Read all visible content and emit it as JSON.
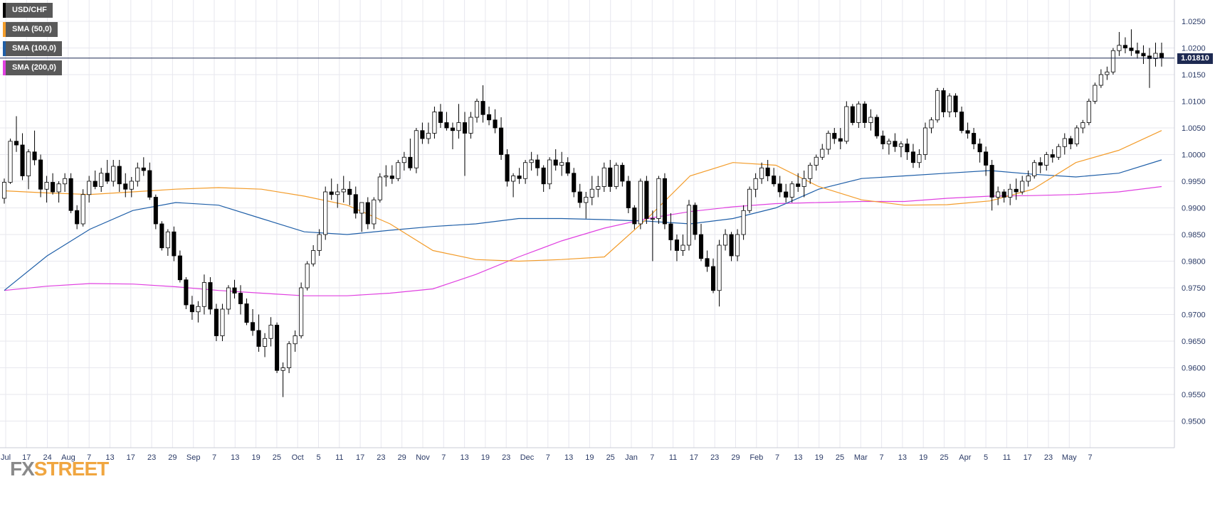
{
  "legend": [
    {
      "label": "USD/CHF",
      "color": "#000000"
    },
    {
      "label": "SMA (50,0)",
      "color": "#f39c2a"
    },
    {
      "label": "SMA (100,0)",
      "color": "#1f5fa8"
    },
    {
      "label": "SMA (200,0)",
      "color": "#e040e0"
    }
  ],
  "last_price": {
    "label": "1.01810",
    "value": 1.0181
  },
  "logo": {
    "fx": "FX",
    "street": "STREET"
  },
  "colors": {
    "grid": "#e7e7ee",
    "axis": "#c9cbd6",
    "tick_text": "#2a3a66",
    "candle_up": "#ffffff",
    "candle_down": "#000000",
    "price_line": "#1e2a52"
  },
  "chart_data": {
    "type": "candlestick",
    "title": "USD/CHF",
    "ylim": [
      0.945,
      1.029
    ],
    "y_ticks": [
      "1.0250",
      "1.0200",
      "1.0150",
      "1.0100",
      "1.0050",
      "1.0000",
      "0.9950",
      "0.9900",
      "0.9850",
      "0.9800",
      "0.9750",
      "0.9700",
      "0.9650",
      "0.9600",
      "0.9550",
      "0.9500"
    ],
    "x_ticks": [
      "Jul",
      "17",
      "24",
      "Aug",
      "7",
      "13",
      "17",
      "23",
      "29",
      "Sep",
      "7",
      "13",
      "19",
      "25",
      "Oct",
      "5",
      "11",
      "17",
      "23",
      "29",
      "Nov",
      "7",
      "13",
      "19",
      "23",
      "Dec",
      "7",
      "13",
      "19",
      "25",
      "Jan",
      "7",
      "11",
      "17",
      "23",
      "29",
      "Feb",
      "7",
      "13",
      "19",
      "25",
      "Mar",
      "7",
      "13",
      "19",
      "25",
      "Apr",
      "5",
      "11",
      "17",
      "23",
      "May",
      "7"
    ],
    "candles": [
      [
        0.9918,
        0.9955,
        0.9908,
        0.9948
      ],
      [
        0.9948,
        1.003,
        0.9945,
        1.0025
      ],
      [
        1.0025,
        1.0072,
        1.0005,
        1.0018
      ],
      [
        1.0018,
        1.004,
        0.9952,
        0.996
      ],
      [
        0.996,
        1.001,
        0.9935,
        1.0005
      ],
      [
        1.0005,
        1.0045,
        0.998,
        0.999
      ],
      [
        0.999,
        1.0,
        0.992,
        0.9935
      ],
      [
        0.9935,
        0.996,
        0.991,
        0.9948
      ],
      [
        0.9948,
        0.9965,
        0.9925,
        0.993
      ],
      [
        0.993,
        0.995,
        0.991,
        0.9945
      ],
      [
        0.9945,
        0.9965,
        0.993,
        0.9955
      ],
      [
        0.9955,
        0.9965,
        0.989,
        0.9895
      ],
      [
        0.9895,
        0.9905,
        0.986,
        0.987
      ],
      [
        0.987,
        0.9935,
        0.9865,
        0.9925
      ],
      [
        0.9925,
        0.996,
        0.991,
        0.995
      ],
      [
        0.995,
        0.997,
        0.9935,
        0.994
      ],
      [
        0.994,
        0.9975,
        0.993,
        0.9965
      ],
      [
        0.9965,
        0.999,
        0.9945,
        0.995
      ],
      [
        0.995,
        0.999,
        0.994,
        0.9978
      ],
      [
        0.9978,
        0.999,
        0.993,
        0.9945
      ],
      [
        0.9945,
        0.9965,
        0.992,
        0.9935
      ],
      [
        0.9935,
        0.9958,
        0.992,
        0.995
      ],
      [
        0.995,
        0.9985,
        0.994,
        0.9975
      ],
      [
        0.9975,
        0.9995,
        0.996,
        0.997
      ],
      [
        0.997,
        0.9985,
        0.9915,
        0.992
      ],
      [
        0.992,
        0.9925,
        0.986,
        0.987
      ],
      [
        0.987,
        0.9875,
        0.982,
        0.9825
      ],
      [
        0.9825,
        0.986,
        0.981,
        0.9855
      ],
      [
        0.9855,
        0.9865,
        0.98,
        0.981
      ],
      [
        0.981,
        0.982,
        0.976,
        0.9765
      ],
      [
        0.9765,
        0.977,
        0.971,
        0.9718
      ],
      [
        0.9718,
        0.9735,
        0.969,
        0.9705
      ],
      [
        0.9705,
        0.9725,
        0.9685,
        0.9715
      ],
      [
        0.9715,
        0.9775,
        0.97,
        0.976
      ],
      [
        0.976,
        0.977,
        0.97,
        0.971
      ],
      [
        0.971,
        0.972,
        0.965,
        0.966
      ],
      [
        0.966,
        0.972,
        0.965,
        0.971
      ],
      [
        0.971,
        0.9755,
        0.97,
        0.975
      ],
      [
        0.975,
        0.9765,
        0.973,
        0.974
      ],
      [
        0.974,
        0.9755,
        0.97,
        0.972
      ],
      [
        0.972,
        0.973,
        0.968,
        0.9685
      ],
      [
        0.9685,
        0.971,
        0.966,
        0.967
      ],
      [
        0.967,
        0.97,
        0.963,
        0.964
      ],
      [
        0.964,
        0.9665,
        0.962,
        0.9655
      ],
      [
        0.9655,
        0.9695,
        0.964,
        0.968
      ],
      [
        0.968,
        0.9685,
        0.959,
        0.9595
      ],
      [
        0.9595,
        0.961,
        0.9545,
        0.96
      ],
      [
        0.96,
        0.965,
        0.959,
        0.9645
      ],
      [
        0.9645,
        0.967,
        0.963,
        0.966
      ],
      [
        0.966,
        0.976,
        0.9655,
        0.975
      ],
      [
        0.975,
        0.98,
        0.9745,
        0.9795
      ],
      [
        0.9795,
        0.983,
        0.979,
        0.982
      ],
      [
        0.982,
        0.986,
        0.981,
        0.985
      ],
      [
        0.985,
        0.994,
        0.984,
        0.993
      ],
      [
        0.993,
        0.9955,
        0.9915,
        0.9925
      ],
      [
        0.9925,
        0.9945,
        0.99,
        0.993
      ],
      [
        0.993,
        0.996,
        0.991,
        0.9935
      ],
      [
        0.9935,
        0.995,
        0.9905,
        0.9925
      ],
      [
        0.9925,
        0.994,
        0.988,
        0.989
      ],
      [
        0.989,
        0.9905,
        0.9855,
        0.991
      ],
      [
        0.991,
        0.992,
        0.986,
        0.987
      ],
      [
        0.987,
        0.992,
        0.986,
        0.9915
      ],
      [
        0.9915,
        0.9965,
        0.991,
        0.9958
      ],
      [
        0.9958,
        0.998,
        0.994,
        0.996
      ],
      [
        0.996,
        0.998,
        0.9945,
        0.9955
      ],
      [
        0.9955,
        0.999,
        0.995,
        0.9985
      ],
      [
        0.9985,
        1.0005,
        0.997,
        0.9995
      ],
      [
        0.9995,
        1.003,
        0.997,
        0.9975
      ],
      [
        0.9975,
        1.005,
        0.9965,
        1.0045
      ],
      [
        1.0045,
        1.006,
        1.002,
        1.003
      ],
      [
        1.003,
        1.006,
        1.002,
        1.004
      ],
      [
        1.004,
        1.009,
        1.003,
        1.008
      ],
      [
        1.008,
        1.0095,
        1.005,
        1.006
      ],
      [
        1.006,
        1.008,
        1.0045,
        1.005
      ],
      [
        1.005,
        1.006,
        1.001,
        1.0045
      ],
      [
        1.0045,
        1.0095,
        1.003,
        1.006
      ],
      [
        1.006,
        1.008,
        0.996,
        1.004
      ],
      [
        1.004,
        1.008,
        1.003,
        1.007
      ],
      [
        1.007,
        1.0105,
        1.006,
        1.01
      ],
      [
        1.01,
        1.013,
        1.006,
        1.0075
      ],
      [
        1.0075,
        1.009,
        1.0055,
        1.0065
      ],
      [
        1.0065,
        1.0085,
        1.004,
        1.005
      ],
      [
        1.005,
        1.007,
        0.999,
        1.0
      ],
      [
        1.0,
        1.001,
        0.994,
        0.995
      ],
      [
        0.995,
        0.9965,
        0.992,
        0.996
      ],
      [
        0.996,
        0.9975,
        0.9945,
        0.9955
      ],
      [
        0.9955,
        0.999,
        0.9945,
        0.9985
      ],
      [
        0.9985,
        1.0005,
        0.997,
        0.999
      ],
      [
        0.999,
        1.0,
        0.996,
        0.9975
      ],
      [
        0.9975,
        0.998,
        0.993,
        0.9945
      ],
      [
        0.9945,
        0.9995,
        0.9935,
        0.999
      ],
      [
        0.999,
        1.001,
        0.997,
        0.998
      ],
      [
        0.998,
        1.0005,
        0.996,
        0.9985
      ],
      [
        0.9985,
        0.9995,
        0.996,
        0.9965
      ],
      [
        0.9965,
        0.9975,
        0.992,
        0.993
      ],
      [
        0.993,
        0.9945,
        0.99,
        0.991
      ],
      [
        0.991,
        0.993,
        0.988,
        0.992
      ],
      [
        0.992,
        0.996,
        0.9905,
        0.9935
      ],
      [
        0.9935,
        0.996,
        0.992,
        0.994
      ],
      [
        0.994,
        0.9985,
        0.993,
        0.9975
      ],
      [
        0.9975,
        0.999,
        0.993,
        0.994
      ],
      [
        0.994,
        0.9985,
        0.9935,
        0.998
      ],
      [
        0.998,
        0.9985,
        0.994,
        0.995
      ],
      [
        0.995,
        0.996,
        0.989,
        0.99
      ],
      [
        0.99,
        0.9905,
        0.986,
        0.987
      ],
      [
        0.987,
        0.9955,
        0.986,
        0.995
      ],
      [
        0.995,
        0.996,
        0.987,
        0.988
      ],
      [
        0.988,
        0.9895,
        0.98,
        0.988
      ],
      [
        0.988,
        0.996,
        0.987,
        0.9955
      ],
      [
        0.9955,
        0.9965,
        0.986,
        0.987
      ],
      [
        0.987,
        0.989,
        0.982,
        0.984
      ],
      [
        0.984,
        0.985,
        0.98,
        0.982
      ],
      [
        0.982,
        0.985,
        0.981,
        0.983
      ],
      [
        0.983,
        0.9915,
        0.982,
        0.9905
      ],
      [
        0.9905,
        0.991,
        0.984,
        0.985
      ],
      [
        0.985,
        0.987,
        0.98,
        0.9805
      ],
      [
        0.9805,
        0.982,
        0.978,
        0.979
      ],
      [
        0.979,
        0.9805,
        0.974,
        0.9745
      ],
      [
        0.9745,
        0.984,
        0.9715,
        0.983
      ],
      [
        0.983,
        0.986,
        0.982,
        0.985
      ],
      [
        0.985,
        0.9855,
        0.98,
        0.981
      ],
      [
        0.981,
        0.986,
        0.98,
        0.985
      ],
      [
        0.985,
        0.9905,
        0.984,
        0.9895
      ],
      [
        0.9895,
        0.994,
        0.989,
        0.9935
      ],
      [
        0.9935,
        0.9965,
        0.992,
        0.9955
      ],
      [
        0.9955,
        0.9985,
        0.9945,
        0.9975
      ],
      [
        0.9975,
        0.999,
        0.995,
        0.996
      ],
      [
        0.996,
        0.9975,
        0.994,
        0.9945
      ],
      [
        0.9945,
        0.996,
        0.992,
        0.993
      ],
      [
        0.993,
        0.9945,
        0.991,
        0.992
      ],
      [
        0.992,
        0.995,
        0.991,
        0.9945
      ],
      [
        0.9945,
        0.9965,
        0.993,
        0.994
      ],
      [
        0.994,
        0.997,
        0.992,
        0.9955
      ],
      [
        0.9955,
        0.9985,
        0.9945,
        0.998
      ],
      [
        0.998,
        1.0,
        0.997,
        0.9995
      ],
      [
        0.9995,
        1.002,
        0.999,
        1.001
      ],
      [
        1.001,
        1.0045,
        1.0,
        1.004
      ],
      [
        1.004,
        1.005,
        1.002,
        1.003
      ],
      [
        1.003,
        1.005,
        1.001,
        1.0025
      ],
      [
        1.0025,
        1.01,
        1.002,
        1.009
      ],
      [
        1.009,
        1.0095,
        1.0055,
        1.006
      ],
      [
        1.006,
        1.01,
        1.005,
        1.0095
      ],
      [
        1.0095,
        1.01,
        1.005,
        1.006
      ],
      [
        1.006,
        1.0085,
        1.0045,
        1.007
      ],
      [
        1.007,
        1.0075,
        1.003,
        1.0035
      ],
      [
        1.0035,
        1.0045,
        1.001,
        1.002
      ],
      [
        1.002,
        1.003,
        1.0,
        1.0025
      ],
      [
        1.0025,
        1.004,
        1.0005,
        1.0015
      ],
      [
        1.0015,
        1.0025,
        0.9995,
        1.002
      ],
      [
        1.002,
        1.003,
        0.999,
        1.0005
      ],
      [
        1.0005,
        1.002,
        0.9975,
        0.9985
      ],
      [
        0.9985,
        1.001,
        0.9975,
        1.0
      ],
      [
        1.0,
        1.006,
        0.999,
        1.005
      ],
      [
        1.005,
        1.007,
        1.004,
        1.0065
      ],
      [
        1.0065,
        1.0125,
        1.006,
        1.012
      ],
      [
        1.012,
        1.0125,
        1.007,
        1.008
      ],
      [
        1.008,
        1.0115,
        1.007,
        1.011
      ],
      [
        1.011,
        1.0115,
        1.007,
        1.008
      ],
      [
        1.008,
        1.009,
        1.004,
        1.0045
      ],
      [
        1.0045,
        1.006,
        1.003,
        1.004
      ],
      [
        1.004,
        1.005,
        1.001,
        1.002
      ],
      [
        1.002,
        1.003,
        0.9985,
        1.0005
      ],
      [
        1.0005,
        1.0015,
        0.996,
        0.998
      ],
      [
        0.998,
        0.999,
        0.9895,
        0.992
      ],
      [
        0.992,
        0.994,
        0.9905,
        0.993
      ],
      [
        0.993,
        0.9935,
        0.991,
        0.992
      ],
      [
        0.992,
        0.9945,
        0.9905,
        0.9935
      ],
      [
        0.9935,
        0.9955,
        0.9915,
        0.993
      ],
      [
        0.993,
        0.996,
        0.9925,
        0.995
      ],
      [
        0.995,
        0.997,
        0.994,
        0.996
      ],
      [
        0.996,
        0.999,
        0.9955,
        0.9985
      ],
      [
        0.9985,
        0.9995,
        0.9965,
        0.998
      ],
      [
        0.998,
        1.0005,
        0.997,
        1.0
      ],
      [
        1.0,
        1.001,
        0.9985,
        0.9995
      ],
      [
        0.9995,
        1.002,
        0.999,
        1.0015
      ],
      [
        1.0015,
        1.004,
        1.0,
        1.003
      ],
      [
        1.003,
        1.0035,
        1.001,
        1.002
      ],
      [
        1.002,
        1.0055,
        1.0015,
        1.005
      ],
      [
        1.005,
        1.0065,
        1.004,
        1.006
      ],
      [
        1.006,
        1.0105,
        1.0055,
        1.01
      ],
      [
        1.01,
        1.0135,
        1.0095,
        1.013
      ],
      [
        1.013,
        1.016,
        1.0125,
        1.015
      ],
      [
        1.015,
        1.0165,
        1.014,
        1.0155
      ],
      [
        1.0155,
        1.02,
        1.015,
        1.0195
      ],
      [
        1.0195,
        1.023,
        1.0185,
        1.0205
      ],
      [
        1.0205,
        1.022,
        1.019,
        1.02
      ],
      [
        1.02,
        1.0235,
        1.0185,
        1.0195
      ],
      [
        1.0195,
        1.021,
        1.018,
        1.019
      ],
      [
        1.019,
        1.0205,
        1.017,
        1.0185
      ],
      [
        1.0185,
        1.02,
        1.0125,
        1.018
      ],
      [
        1.018,
        1.021,
        1.0165,
        1.019
      ],
      [
        1.019,
        1.021,
        1.0165,
        1.0181
      ]
    ],
    "sma50": [
      0.9932,
      0.9928,
      0.9925,
      0.993,
      0.9935,
      0.9938,
      0.9935,
      0.9922,
      0.9905,
      0.987,
      0.982,
      0.9803,
      0.98,
      0.9803,
      0.9808,
      0.988,
      0.996,
      0.9985,
      0.998,
      0.994,
      0.9915,
      0.9905,
      0.9906,
      0.9913,
      0.9935,
      0.9985,
      1.0008,
      1.0045
    ],
    "sma100": [
      0.9745,
      0.981,
      0.986,
      0.9895,
      0.991,
      0.9905,
      0.988,
      0.9855,
      0.985,
      0.9858,
      0.9865,
      0.987,
      0.988,
      0.988,
      0.9878,
      0.9875,
      0.987,
      0.988,
      0.99,
      0.9935,
      0.9955,
      0.996,
      0.9965,
      0.997,
      0.9963,
      0.9958,
      0.9965,
      0.999
    ],
    "sma200": [
      0.9745,
      0.9753,
      0.9758,
      0.9757,
      0.9752,
      0.9745,
      0.974,
      0.9735,
      0.9735,
      0.974,
      0.9748,
      0.9775,
      0.9808,
      0.9838,
      0.9862,
      0.988,
      0.9893,
      0.9902,
      0.9908,
      0.991,
      0.9912,
      0.9912,
      0.9918,
      0.9922,
      0.9923,
      0.9925,
      0.993,
      0.994
    ],
    "grid": true,
    "legend_position": "top-left"
  }
}
